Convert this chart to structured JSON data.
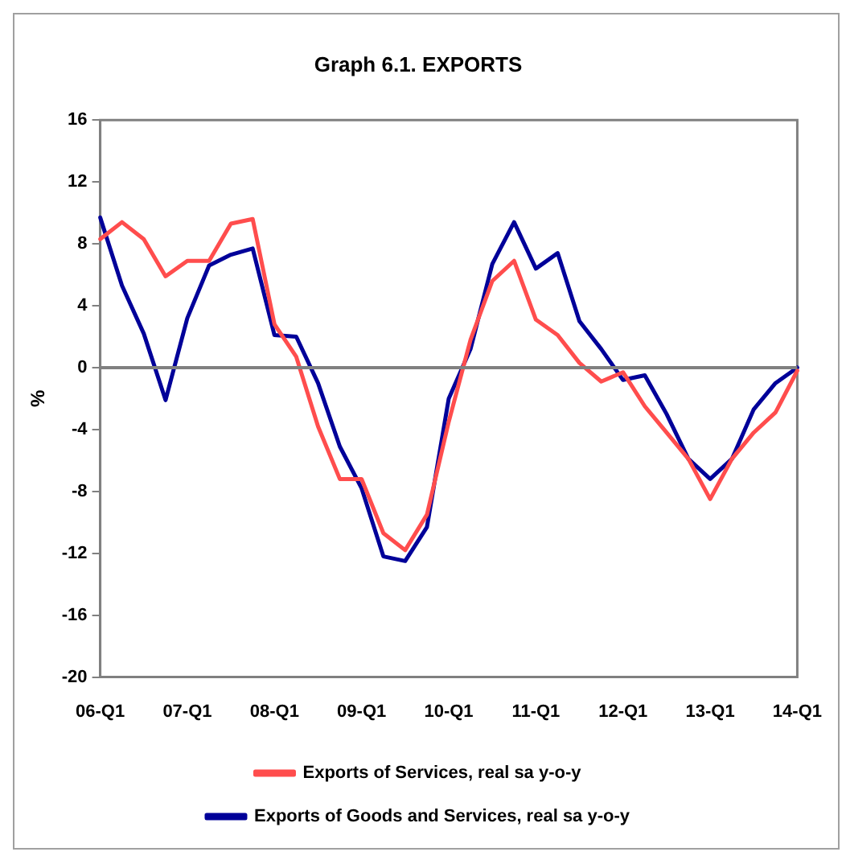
{
  "chart_data": {
    "type": "line",
    "title": "Graph 6.1. EXPORTS",
    "ylabel": "%",
    "categories": [
      "06-Q1",
      null,
      null,
      null,
      "07-Q1",
      null,
      null,
      null,
      "08-Q1",
      null,
      null,
      null,
      "09-Q1",
      null,
      null,
      null,
      "10-Q1",
      null,
      null,
      null,
      "11-Q1",
      null,
      null,
      null,
      "12-Q1",
      null,
      null,
      null,
      "13-Q1",
      null,
      null,
      null,
      "14-Q1"
    ],
    "series": [
      {
        "name": "Exports of Services, real sa y-o-y",
        "color": "#ff4d4d",
        "values": [
          8.3,
          9.4,
          8.3,
          5.9,
          6.9,
          6.9,
          9.3,
          9.6,
          2.8,
          0.7,
          -3.8,
          -7.2,
          -7.2,
          -10.7,
          -11.8,
          -9.5,
          -3.5,
          1.8,
          5.6,
          6.9,
          3.1,
          2.1,
          0.3,
          -0.9,
          -0.3,
          -2.5,
          -4.2,
          -5.9,
          -8.5,
          -5.9,
          -4.2,
          -2.9,
          -0.2
        ]
      },
      {
        "name": "Exports of Goods and Services, real sa y-o-y",
        "color": "#000099",
        "values": [
          9.7,
          5.3,
          2.2,
          -2.1,
          3.2,
          6.6,
          7.3,
          7.7,
          2.1,
          2.0,
          -1.0,
          -5.1,
          -7.8,
          -12.2,
          -12.5,
          -10.3,
          -2.0,
          1.2,
          6.7,
          9.4,
          6.4,
          7.4,
          3.0,
          1.2,
          -0.8,
          -0.5,
          -3.0,
          -5.9,
          -7.2,
          -5.9,
          -2.7,
          -1.0,
          0
        ]
      }
    ],
    "ylim": [
      -20,
      16
    ],
    "yticks": [
      -20,
      -16,
      -12,
      -8,
      -4,
      0,
      4,
      8,
      12,
      16
    ],
    "ref_lines": [
      {
        "axis": "y",
        "value": 0,
        "color": "#808080"
      }
    ],
    "grid": false,
    "legend": "bottom",
    "marker": "none",
    "line_style": "solid"
  }
}
